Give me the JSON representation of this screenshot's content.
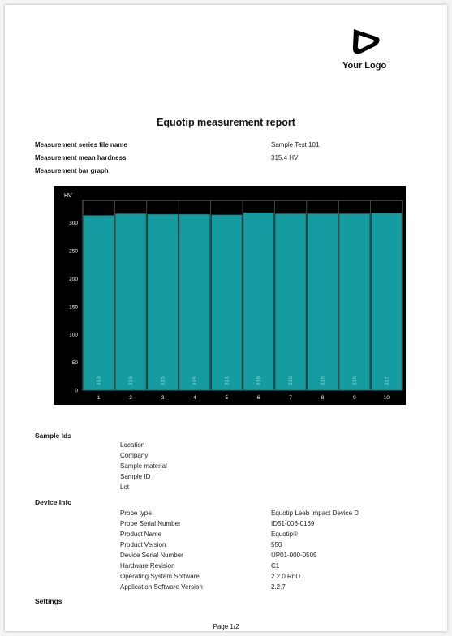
{
  "header": {
    "logo_text": "Your Logo"
  },
  "report": {
    "title": "Equotip measurement report",
    "fields": [
      {
        "label": "Measurement series file name",
        "value": "Sample Test 101"
      },
      {
        "label": "Measurement mean hardness",
        "value": "315.4 HV"
      },
      {
        "label": "Measurement bar graph",
        "value": ""
      }
    ]
  },
  "chart_data": {
    "type": "bar",
    "ylabel": "HV",
    "ylim": [
      0,
      340
    ],
    "yticks": [
      0,
      50,
      100,
      150,
      200,
      250,
      300
    ],
    "categories": [
      "1",
      "2",
      "3",
      "4",
      "5",
      "6",
      "7",
      "8",
      "9",
      "10"
    ],
    "values": [
      313,
      316,
      315,
      315,
      314,
      318,
      316,
      316,
      316,
      317
    ],
    "bar_color": "#159ca0",
    "background": "#000000",
    "grid": false
  },
  "sample_ids": {
    "title": "Sample Ids",
    "items": [
      "Location",
      "Company",
      "Sample material",
      "Sample ID",
      "Lot"
    ]
  },
  "device_info": {
    "title": "Device Info",
    "rows": [
      {
        "label": "Probe type",
        "value": "Equotip Leeb Impact Device D"
      },
      {
        "label": "Probe Serial Number",
        "value": "ID51-006-0169"
      },
      {
        "label": "Product Name",
        "value": "Equotip®"
      },
      {
        "label": "Product Version",
        "value": "550"
      },
      {
        "label": "Device Serial Number",
        "value": "UP01-000-0505"
      },
      {
        "label": "Hardware Revision",
        "value": "C1"
      },
      {
        "label": "Operating System Software",
        "value": "2.2.0 RnD"
      },
      {
        "label": "Application Software Version",
        "value": "2.2.7"
      }
    ]
  },
  "settings": {
    "title": "Settings"
  },
  "footer": {
    "page": "Page 1/2"
  }
}
